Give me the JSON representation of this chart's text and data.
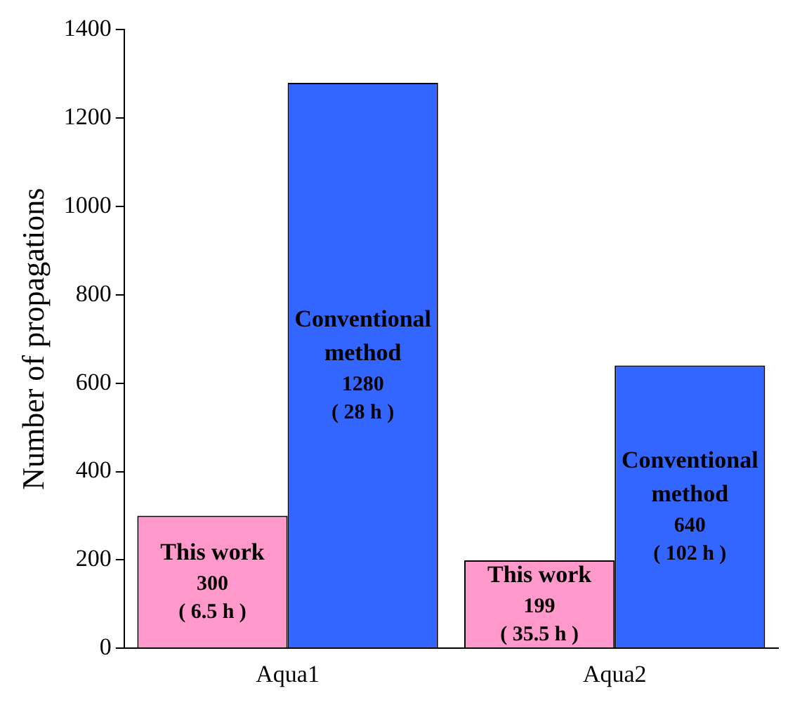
{
  "chart_data": {
    "type": "bar",
    "ylabel": "Number of propagations",
    "categories": [
      "Aqua1",
      "Aqua2"
    ],
    "series": [
      {
        "name": "This work",
        "color": "#ff99cc",
        "values": [
          300,
          199
        ],
        "value_labels": [
          "300\n( 6.5 h )",
          "199\n( 35.5 h )"
        ]
      },
      {
        "name": "Conventional method",
        "color": "#3366ff",
        "values": [
          1280,
          640
        ],
        "value_labels": [
          "1280\n( 28 h )",
          "640\n( 102 h )"
        ]
      }
    ],
    "ylim": [
      0,
      1400
    ],
    "yticks": [
      0,
      200,
      400,
      600,
      800,
      1000,
      1200,
      1400
    ],
    "grid": false,
    "legend": false
  }
}
